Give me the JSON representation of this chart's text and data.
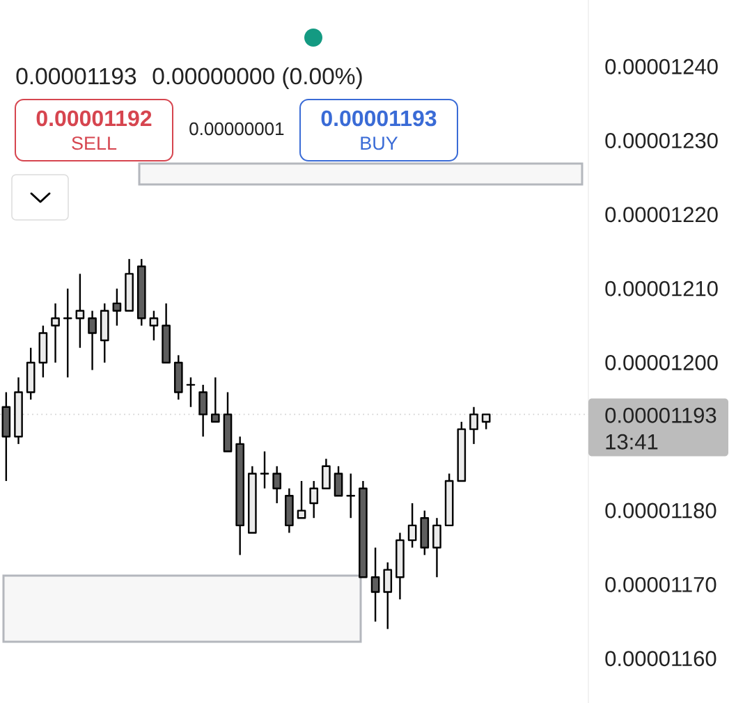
{
  "chart_data": {
    "type": "candlestick",
    "categories": [
      null,
      null,
      null,
      null,
      null,
      null,
      null,
      null,
      null,
      null,
      null,
      null,
      null,
      null,
      null,
      null,
      null,
      null,
      null,
      null,
      null,
      null,
      null,
      null,
      null,
      null,
      null,
      null,
      null,
      null,
      null,
      null,
      null,
      null,
      null,
      null,
      null,
      null,
      null,
      null
    ],
    "ohlc": [
      [
        1.194e-05,
        1.196e-05,
        1.184e-05,
        1.19e-05
      ],
      [
        1.19e-05,
        1.198e-05,
        1.189e-05,
        1.196e-05
      ],
      [
        1.196e-05,
        1.202e-05,
        1.195e-05,
        1.2e-05
      ],
      [
        1.2e-05,
        1.205e-05,
        1.198e-05,
        1.204e-05
      ],
      [
        1.205e-05,
        1.208e-05,
        1.2e-05,
        1.206e-05
      ],
      [
        1.206e-05,
        1.21e-05,
        1.198e-05,
        1.206e-05
      ],
      [
        1.206e-05,
        1.212e-05,
        1.202e-05,
        1.207e-05
      ],
      [
        1.206e-05,
        1.207e-05,
        1.199e-05,
        1.204e-05
      ],
      [
        1.203e-05,
        1.208e-05,
        1.2e-05,
        1.207e-05
      ],
      [
        1.208e-05,
        1.21e-05,
        1.205e-05,
        1.207e-05
      ],
      [
        1.207e-05,
        1.214e-05,
        1.207e-05,
        1.212e-05
      ],
      [
        1.213e-05,
        1.214e-05,
        1.205e-05,
        1.206e-05
      ],
      [
        1.205e-05,
        1.207e-05,
        1.203e-05,
        1.206e-05
      ],
      [
        1.205e-05,
        1.208e-05,
        1.2e-05,
        1.2e-05
      ],
      [
        1.2e-05,
        1.201e-05,
        1.195e-05,
        1.196e-05
      ],
      [
        1.197e-05,
        1.198e-05,
        1.194e-05,
        1.197e-05
      ],
      [
        1.196e-05,
        1.197e-05,
        1.19e-05,
        1.193e-05
      ],
      [
        1.193e-05,
        1.198e-05,
        1.192e-05,
        1.192e-05
      ],
      [
        1.193e-05,
        1.196e-05,
        1.188e-05,
        1.188e-05
      ],
      [
        1.189e-05,
        1.19e-05,
        1.174e-05,
        1.178e-05
      ],
      [
        1.177e-05,
        1.186e-05,
        1.177e-05,
        1.185e-05
      ],
      [
        1.185e-05,
        1.188e-05,
        1.183e-05,
        1.185e-05
      ],
      [
        1.185e-05,
        1.186e-05,
        1.181e-05,
        1.183e-05
      ],
      [
        1.182e-05,
        1.183e-05,
        1.177e-05,
        1.178e-05
      ],
      [
        1.179e-05,
        1.184e-05,
        1.179e-05,
        1.18e-05
      ],
      [
        1.181e-05,
        1.184e-05,
        1.179e-05,
        1.183e-05
      ],
      [
        1.183e-05,
        1.187e-05,
        1.183e-05,
        1.186e-05
      ],
      [
        1.185e-05,
        1.186e-05,
        1.182e-05,
        1.182e-05
      ],
      [
        1.182e-05,
        1.185e-05,
        1.179e-05,
        1.182e-05
      ],
      [
        1.183e-05,
        1.184e-05,
        1.171e-05,
        1.171e-05
      ],
      [
        1.171e-05,
        1.175e-05,
        1.165e-05,
        1.169e-05
      ],
      [
        1.169e-05,
        1.173e-05,
        1.164e-05,
        1.172e-05
      ],
      [
        1.171e-05,
        1.177e-05,
        1.168e-05,
        1.176e-05
      ],
      [
        1.176e-05,
        1.181e-05,
        1.175e-05,
        1.178e-05
      ],
      [
        1.179e-05,
        1.18e-05,
        1.174e-05,
        1.175e-05
      ],
      [
        1.175e-05,
        1.179e-05,
        1.171e-05,
        1.178e-05
      ],
      [
        1.178e-05,
        1.185e-05,
        1.178e-05,
        1.184e-05
      ],
      [
        1.184e-05,
        1.192e-05,
        1.184e-05,
        1.191e-05
      ],
      [
        1.191e-05,
        1.194e-05,
        1.189e-05,
        1.193e-05
      ],
      [
        1.192e-05,
        1.193e-05,
        1.191e-05,
        1.193e-05
      ]
    ],
    "colors": [
      "#5e5e5e",
      "#ebebeb",
      "#ebebeb",
      "#ebebeb",
      "#ebebeb",
      "#000000",
      "#ebebeb",
      "#5e5e5e",
      "#ebebeb",
      "#5e5e5e",
      "#ebebeb",
      "#5e5e5e",
      "#ebebeb",
      "#5e5e5e",
      "#5e5e5e",
      "#000000",
      "#5e5e5e",
      "#5e5e5e",
      "#5e5e5e",
      "#5e5e5e",
      "#ebebeb",
      "#000000",
      "#5e5e5e",
      "#5e5e5e",
      "#ebebeb",
      "#ebebeb",
      "#ebebeb",
      "#5e5e5e",
      "#000000",
      "#5e5e5e",
      "#5e5e5e",
      "#ebebeb",
      "#ebebeb",
      "#ebebeb",
      "#5e5e5e",
      "#ebebeb",
      "#ebebeb",
      "#ebebeb",
      "#ebebeb",
      "#ebebeb"
    ],
    "ylim": [
      1.154e-05,
      1.249e-05
    ],
    "yticks": [
      {
        "value": 1.16e-05,
        "label": "0.00001160"
      },
      {
        "value": 1.17e-05,
        "label": "0.00001170"
      },
      {
        "value": 1.18e-05,
        "label": "0.00001180"
      },
      {
        "value": 1.2e-05,
        "label": "0.00001200"
      },
      {
        "value": 1.21e-05,
        "label": "0.00001210"
      },
      {
        "value": 1.22e-05,
        "label": "0.00001220"
      },
      {
        "value": 1.23e-05,
        "label": "0.00001230"
      },
      {
        "value": 1.24e-05,
        "label": "0.00001240"
      }
    ],
    "tick_labels": "y",
    "ref_lines": [
      {
        "axis": "y",
        "value": 1.193e-05,
        "label": "0.00001193",
        "color": "#cfcfcf",
        "line_style": "dotted"
      }
    ],
    "annotations": [
      "0.00001193",
      "0.00000000 (0.00%)",
      "0.00001192",
      "SELL",
      "0.00000001",
      "0.00001193",
      "BUY",
      "13:41"
    ]
  }
}
